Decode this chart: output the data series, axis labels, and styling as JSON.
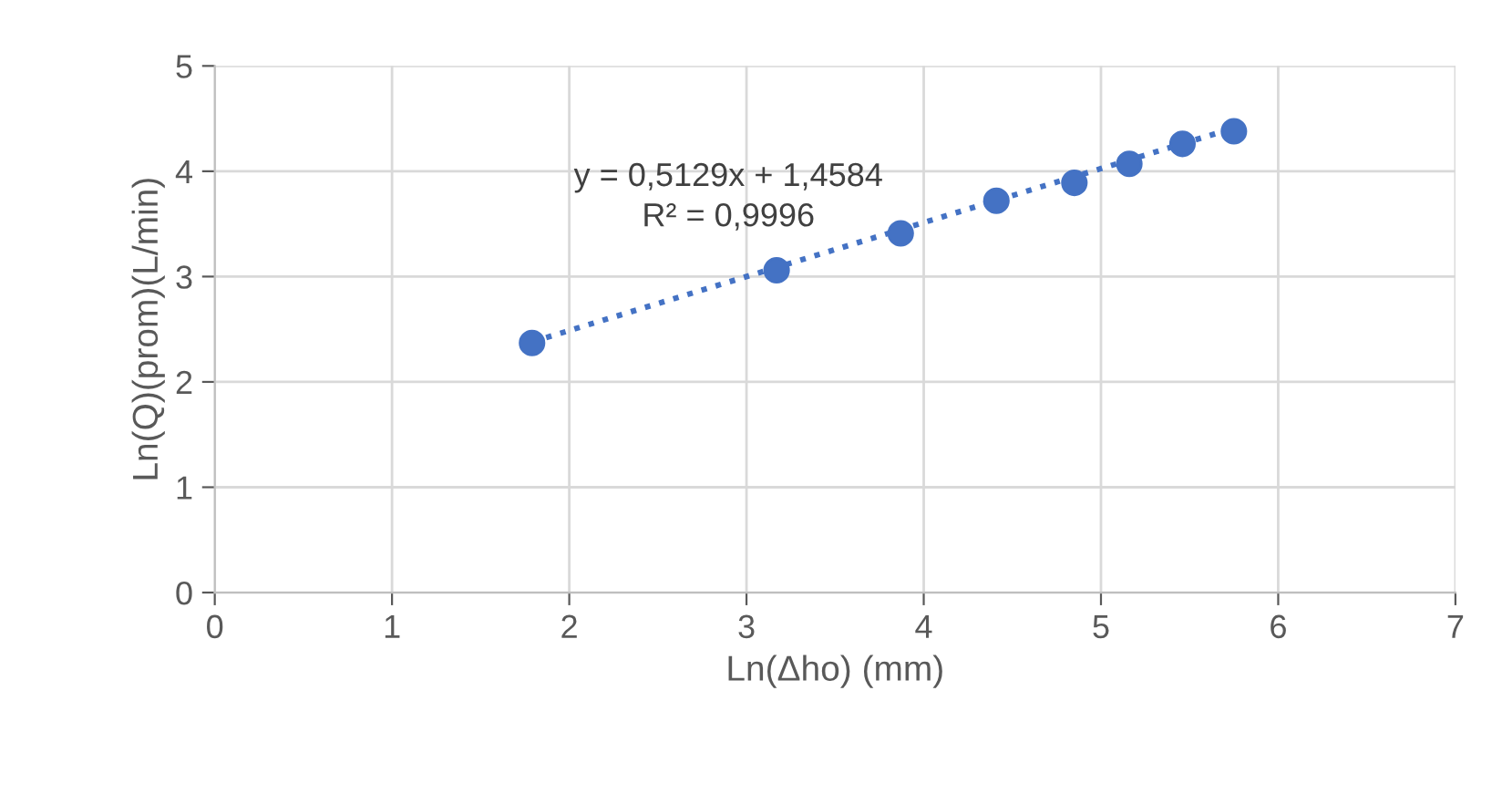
{
  "chart_data": {
    "type": "scatter",
    "xlabel": "Ln(Δho) (mm)",
    "ylabel": "Ln(Q)(prom)(L/min)",
    "series": [
      {
        "color": "#4472c4",
        "marker": "circle",
        "x": [
          1.79,
          3.17,
          3.87,
          4.41,
          4.85,
          5.16,
          5.46,
          5.75
        ],
        "values": [
          2.37,
          3.06,
          3.41,
          3.72,
          3.89,
          4.07,
          4.26,
          4.38
        ]
      },
      {
        "type": "line",
        "color": "#4472c4",
        "line_style": "dotted",
        "marker": "none",
        "x": [
          1.79,
          5.75
        ],
        "values": [
          2.38,
          4.41
        ]
      }
    ],
    "annotations": [
      "y = 0,5129x + 1,4584\nR² = 0,9996"
    ],
    "xlim": [
      0,
      7
    ],
    "xticks": [
      0,
      1,
      2,
      3,
      4,
      5,
      6,
      7
    ],
    "ylim": [
      0,
      5
    ],
    "yticks": [
      0,
      1,
      2,
      3,
      4,
      5
    ],
    "grid": true,
    "legend": false
  }
}
